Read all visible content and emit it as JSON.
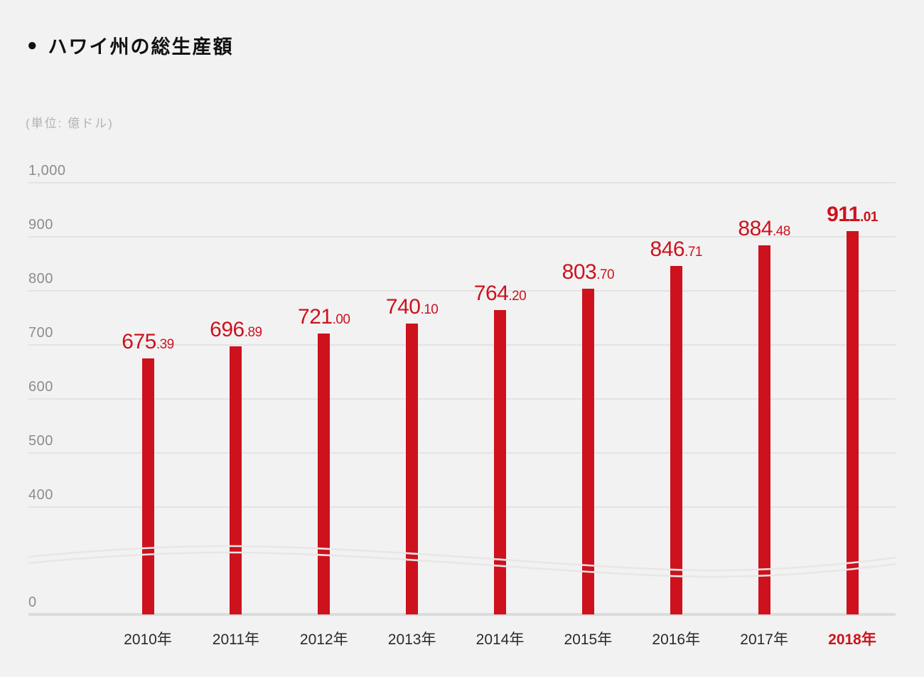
{
  "header": {
    "bullet": "●",
    "title": "ハワイ州の総生産額",
    "unit_note": "(単位: 億ドル)"
  },
  "chart_data": {
    "type": "bar",
    "title": "ハワイ州の総生産額",
    "unit_note": "(単位: 億ドル)",
    "categories": [
      "2010年",
      "2011年",
      "2012年",
      "2013年",
      "2014年",
      "2015年",
      "2016年",
      "2017年",
      "2018年"
    ],
    "values": [
      675.39,
      696.89,
      721.0,
      740.1,
      764.2,
      803.7,
      846.71,
      884.48,
      911.01
    ],
    "value_labels": [
      "675.39",
      "696.89",
      "721.00",
      "740.10",
      "764.20",
      "803.70",
      "846.71",
      "884.48",
      "911.01"
    ],
    "highlight_index": 8,
    "bar_color": "#cd121e",
    "label_color": "#cd121e",
    "y_ticks": [
      "1,000",
      "900",
      "800",
      "700",
      "600",
      "500",
      "400",
      "0"
    ],
    "y_tick_values": [
      1000,
      900,
      800,
      700,
      600,
      500,
      400,
      0
    ],
    "ylim": [
      0,
      1000
    ],
    "axis_break": true,
    "grid": true,
    "legend": "none",
    "xlabel": "",
    "ylabel": "億ドル"
  }
}
